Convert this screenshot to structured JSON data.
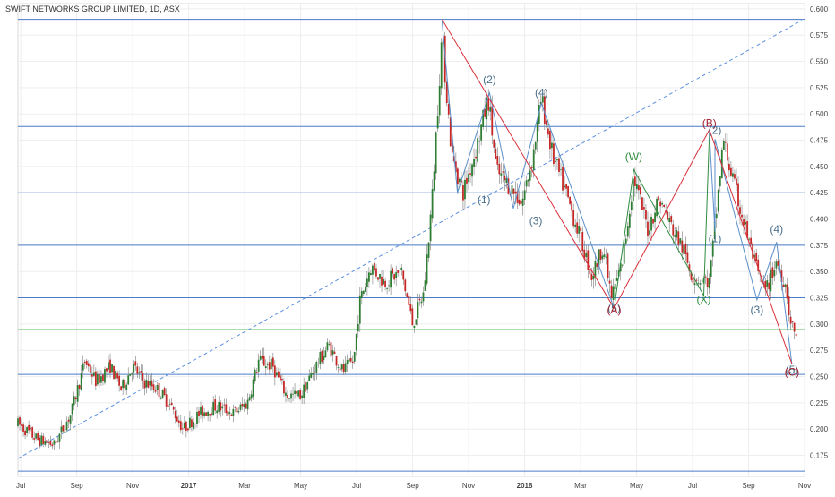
{
  "header": {
    "title": "SWIFT NETWORKS GROUP LIMITED, 1D, ASX"
  },
  "chart_data": {
    "type": "candlestick",
    "title": "SWIFT NETWORKS GROUP LIMITED, 1D, ASX",
    "xlabel": "",
    "ylabel": "",
    "x_ticks": [
      {
        "label": "Jul",
        "t": 0
      },
      {
        "label": "Sep",
        "t": 2
      },
      {
        "label": "Nov",
        "t": 4
      },
      {
        "label": "2017",
        "t": 6
      },
      {
        "label": "Mar",
        "t": 8
      },
      {
        "label": "May",
        "t": 10
      },
      {
        "label": "Jul",
        "t": 12
      },
      {
        "label": "Sep",
        "t": 14
      },
      {
        "label": "Nov",
        "t": 16
      },
      {
        "label": "2018",
        "t": 18
      },
      {
        "label": "Mar",
        "t": 20
      },
      {
        "label": "May",
        "t": 22
      },
      {
        "label": "Jul",
        "t": 24
      },
      {
        "label": "Sep",
        "t": 26
      },
      {
        "label": "Nov",
        "t": 28
      }
    ],
    "x_range": [
      -0.1,
      28.0
    ],
    "ylim": [
      0.155,
      0.605
    ],
    "y_ticks": [
      0.175,
      0.2,
      0.225,
      0.25,
      0.275,
      0.3,
      0.325,
      0.35,
      0.375,
      0.4,
      0.425,
      0.45,
      0.475,
      0.5,
      0.525,
      0.55,
      0.575,
      0.6
    ],
    "y_tick_labels": [
      "0.175",
      "0.200",
      "0.225",
      "0.250",
      "0.275",
      "0.300",
      "0.325",
      "0.350",
      "0.375",
      "0.400",
      "0.425",
      "0.450",
      "0.475",
      "0.500",
      "0.525",
      "0.550",
      "0.575",
      "0.600"
    ],
    "horizontal_levels": [
      0.16,
      0.252,
      0.325,
      0.375,
      0.425,
      0.488,
      0.59
    ],
    "current_price_line": 0.295,
    "trend_line": {
      "from": [
        -0.1,
        0.172
      ],
      "to": [
        27.9,
        0.589
      ],
      "style": "dashed"
    },
    "anchors": [
      [
        -0.1,
        0.205
      ],
      [
        0.6,
        0.19
      ],
      [
        1.2,
        0.185
      ],
      [
        1.8,
        0.215
      ],
      [
        2.3,
        0.265
      ],
      [
        2.7,
        0.245
      ],
      [
        3.2,
        0.26
      ],
      [
        3.6,
        0.238
      ],
      [
        4.0,
        0.26
      ],
      [
        4.4,
        0.245
      ],
      [
        4.8,
        0.24
      ],
      [
        5.3,
        0.225
      ],
      [
        5.8,
        0.2
      ],
      [
        6.4,
        0.215
      ],
      [
        7.0,
        0.222
      ],
      [
        7.6,
        0.215
      ],
      [
        8.1,
        0.225
      ],
      [
        8.5,
        0.265
      ],
      [
        9.0,
        0.26
      ],
      [
        9.5,
        0.232
      ],
      [
        10.0,
        0.232
      ],
      [
        10.5,
        0.258
      ],
      [
        11.0,
        0.28
      ],
      [
        11.5,
        0.255
      ],
      [
        11.9,
        0.265
      ],
      [
        12.1,
        0.32
      ],
      [
        12.5,
        0.355
      ],
      [
        13.0,
        0.34
      ],
      [
        13.6,
        0.35
      ],
      [
        14.0,
        0.3
      ],
      [
        14.4,
        0.33
      ],
      [
        14.7,
        0.42
      ],
      [
        15.05,
        0.575
      ],
      [
        15.4,
        0.46
      ],
      [
        15.8,
        0.425
      ],
      [
        16.3,
        0.47
      ],
      [
        16.7,
        0.515
      ],
      [
        17.0,
        0.445
      ],
      [
        17.5,
        0.43
      ],
      [
        17.9,
        0.415
      ],
      [
        18.3,
        0.46
      ],
      [
        18.6,
        0.515
      ],
      [
        19.0,
        0.46
      ],
      [
        19.4,
        0.43
      ],
      [
        19.9,
        0.39
      ],
      [
        20.4,
        0.345
      ],
      [
        20.8,
        0.375
      ],
      [
        21.1,
        0.325
      ],
      [
        21.5,
        0.36
      ],
      [
        21.9,
        0.44
      ],
      [
        22.4,
        0.39
      ],
      [
        22.8,
        0.42
      ],
      [
        23.2,
        0.395
      ],
      [
        23.6,
        0.375
      ],
      [
        24.0,
        0.345
      ],
      [
        24.6,
        0.34
      ],
      [
        24.9,
        0.42
      ],
      [
        25.1,
        0.475
      ],
      [
        25.5,
        0.43
      ],
      [
        25.9,
        0.39
      ],
      [
        26.3,
        0.35
      ],
      [
        26.6,
        0.33
      ],
      [
        27.0,
        0.36
      ],
      [
        27.35,
        0.335
      ],
      [
        27.5,
        0.3
      ],
      [
        27.7,
        0.29
      ]
    ],
    "wave_labels": [
      {
        "text": "(2)",
        "t": 16.75,
        "y": 0.529,
        "color": "#4a6f8a"
      },
      {
        "text": "(4)",
        "t": 18.6,
        "y": 0.517,
        "color": "#4a6f8a"
      },
      {
        "text": "(1)",
        "t": 16.55,
        "y": 0.415,
        "color": "#4a6f8a"
      },
      {
        "text": "(3)",
        "t": 18.4,
        "y": 0.395,
        "color": "#4a6f8a"
      },
      {
        "text": "(5)",
        "t": 21.2,
        "y": 0.312,
        "color": "#4a6f8a"
      },
      {
        "text": "(A)",
        "t": 21.2,
        "y": 0.31,
        "color": "#a01f2d"
      },
      {
        "text": "(W)",
        "t": 21.9,
        "y": 0.456,
        "color": "#2e8b3e"
      },
      {
        "text": "(X)",
        "t": 24.4,
        "y": 0.32,
        "color": "#2e8b3e"
      },
      {
        "text": "(B)",
        "t": 24.6,
        "y": 0.488,
        "color": "#a01f2d"
      },
      {
        "text": "(2)",
        "t": 24.8,
        "y": 0.481,
        "color": "#4a6f8a"
      },
      {
        "text": "(1)",
        "t": 24.8,
        "y": 0.378,
        "color": "#4a6f8a"
      },
      {
        "text": "(4)",
        "t": 27.0,
        "y": 0.387,
        "color": "#4a6f8a"
      },
      {
        "text": "(3)",
        "t": 26.3,
        "y": 0.31,
        "color": "#4a6f8a"
      },
      {
        "text": "(5)",
        "t": 27.55,
        "y": 0.253,
        "color": "#4a6f8a"
      },
      {
        "text": "(C)",
        "t": 27.55,
        "y": 0.251,
        "color": "#a01f2d"
      }
    ],
    "wave_lines": [
      {
        "color": "#5b8fc9",
        "points": [
          [
            15.05,
            0.588
          ],
          [
            15.6,
            0.425
          ],
          [
            16.75,
            0.52
          ],
          [
            17.6,
            0.41
          ],
          [
            18.6,
            0.51
          ],
          [
            21.2,
            0.315
          ]
        ]
      },
      {
        "color": "#2e8b3e",
        "points": [
          [
            21.2,
            0.315
          ],
          [
            21.9,
            0.447
          ],
          [
            24.4,
            0.327
          ],
          [
            24.6,
            0.482
          ]
        ]
      },
      {
        "color": "#5b8fc9",
        "points": [
          [
            24.6,
            0.482
          ],
          [
            24.8,
            0.388
          ],
          [
            24.8,
            0.476
          ],
          [
            26.3,
            0.323
          ],
          [
            27.0,
            0.378
          ],
          [
            27.55,
            0.262
          ]
        ]
      },
      {
        "color": "#d9303a",
        "points": [
          [
            15.05,
            0.59
          ],
          [
            21.2,
            0.315
          ],
          [
            24.6,
            0.485
          ],
          [
            27.55,
            0.262
          ]
        ]
      }
    ],
    "colors": {
      "up": "#2e7d32",
      "down": "#c62828",
      "wick": "#7a7a7a",
      "level": "#4a7cc7",
      "current": "#8fd18f",
      "trend": "#5b8fe0",
      "axis_text": "#444444"
    }
  }
}
